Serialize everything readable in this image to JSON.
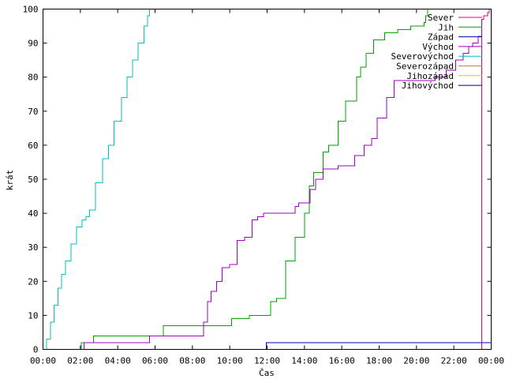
{
  "chart_data": {
    "type": "line",
    "title": "",
    "xlabel": "Čas",
    "ylabel": "krát",
    "xlim": [
      0,
      24
    ],
    "ylim": [
      0,
      100
    ],
    "x_ticks": [
      0,
      2,
      4,
      6,
      8,
      10,
      12,
      14,
      16,
      18,
      20,
      22,
      24
    ],
    "x_tick_labels": [
      "00:00",
      "02:00",
      "04:00",
      "06:00",
      "08:00",
      "10:00",
      "12:00",
      "14:00",
      "16:00",
      "18:00",
      "20:00",
      "22:00",
      "00:00"
    ],
    "y_ticks": [
      0,
      10,
      20,
      30,
      40,
      50,
      60,
      70,
      80,
      90,
      100
    ],
    "y_tick_labels": [
      "0",
      "10",
      "20",
      "30",
      "40",
      "50",
      "60",
      "70",
      "80",
      "90",
      "100"
    ],
    "grid": false,
    "legend_position": "top-right",
    "series": [
      {
        "name": "Sever",
        "color": "#e00080",
        "x": [
          0,
          23.3,
          23.5,
          23.6,
          23.7,
          23.8,
          23.9
        ],
        "y": [
          0,
          0,
          97,
          98,
          98,
          99,
          100
        ]
      },
      {
        "name": "Jih",
        "color": "#00a000",
        "x": [
          0,
          1.95,
          2.05,
          2.5,
          2.7,
          6.35,
          6.45,
          10.0,
          10.1,
          10.9,
          11.05,
          11.85,
          12.2,
          12.5,
          13.0,
          13.5,
          14.0,
          14.25,
          14.5,
          15.0,
          15.3,
          15.8,
          16.2,
          16.8,
          17.0,
          17.3,
          17.7,
          18.3,
          18.8,
          19.0,
          19.7,
          20.2,
          20.4,
          20.5,
          20.6
        ],
        "y": [
          0,
          0,
          2,
          2,
          4,
          4,
          7,
          7,
          9,
          9,
          10,
          10,
          14,
          15,
          26,
          33,
          40,
          48,
          52,
          58,
          60,
          67,
          73,
          80,
          83,
          87,
          91,
          93,
          93,
          94,
          95,
          95,
          96,
          98,
          100
        ]
      },
      {
        "name": "Západ",
        "color": "#0000c0",
        "x": [
          0,
          11.85,
          11.95,
          24
        ],
        "y": [
          0,
          0,
          2,
          2
        ]
      },
      {
        "name": "Východ",
        "color": "#a000c0",
        "x": [
          0,
          2.1,
          2.2,
          5.6,
          5.7,
          8.4,
          8.6,
          8.8,
          9.0,
          9.3,
          9.6,
          10.0,
          10.4,
          10.8,
          11.2,
          11.5,
          11.8,
          12.2,
          13.0,
          13.5,
          13.7,
          14.1,
          14.3,
          14.6,
          15.0,
          15.2,
          15.8,
          16.4,
          16.7,
          17.2,
          17.6,
          17.9,
          18.4,
          18.8,
          19.3,
          20.0,
          20.5,
          21.0,
          21.6,
          22.1,
          22.5,
          22.8,
          23.0,
          23.3,
          23.5
        ],
        "y": [
          0,
          0,
          2,
          2,
          4,
          4,
          8,
          14,
          17,
          20,
          24,
          25,
          32,
          33,
          38,
          39,
          40,
          40,
          40,
          42,
          43,
          43,
          47,
          50,
          53,
          53,
          54,
          54,
          57,
          60,
          62,
          68,
          74,
          79,
          79,
          79,
          79,
          80,
          82,
          85,
          87,
          89,
          90,
          92,
          97
        ]
      },
      {
        "name": "Severovýchod",
        "color": "#00c0c0",
        "x": [
          0,
          0.2,
          0.4,
          0.6,
          0.8,
          1.0,
          1.2,
          1.5,
          1.8,
          2.1,
          2.3,
          2.5,
          2.8,
          3.2,
          3.5,
          3.8,
          4.2,
          4.5,
          4.8,
          5.1,
          5.4,
          5.6,
          5.7
        ],
        "y": [
          0,
          3,
          8,
          13,
          18,
          22,
          26,
          31,
          36,
          38,
          39,
          41,
          49,
          56,
          60,
          67,
          74,
          80,
          85,
          90,
          95,
          98,
          100
        ]
      },
      {
        "name": "Severozápad",
        "color": "#c08040",
        "x": [],
        "y": []
      },
      {
        "name": "Jihozápad",
        "color": "#e0c000",
        "x": [],
        "y": []
      },
      {
        "name": "Jihovýchod",
        "color": "#000080",
        "x": [],
        "y": []
      }
    ]
  }
}
